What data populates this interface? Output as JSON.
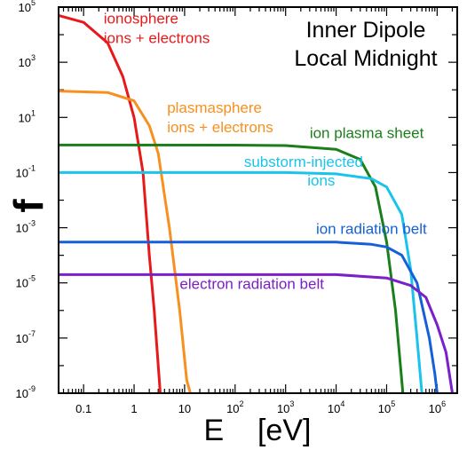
{
  "chart_data": {
    "type": "line",
    "title_lines": [
      "Inner Dipole",
      "Local Midnight"
    ],
    "xlabel": "E    [eV]",
    "ylabel": "f",
    "xscale": "log",
    "yscale": "log",
    "xlim": [
      0.032,
      2500000
    ],
    "ylim": [
      1e-09,
      100000
    ],
    "x_ticks": [
      {
        "value": 0.1,
        "label": "0.1"
      },
      {
        "value": 1,
        "label": "1"
      },
      {
        "value": 10,
        "label": "10"
      },
      {
        "value": 100,
        "base": "10",
        "exp": "2"
      },
      {
        "value": 1000,
        "base": "10",
        "exp": "3"
      },
      {
        "value": 10000,
        "base": "10",
        "exp": "4"
      },
      {
        "value": 100000,
        "base": "10",
        "exp": "5"
      },
      {
        "value": 1000000,
        "base": "10",
        "exp": "6"
      }
    ],
    "y_ticks": [
      {
        "value": 100000,
        "base": "10",
        "exp": "5"
      },
      {
        "value": 1000,
        "base": "10",
        "exp": "3"
      },
      {
        "value": 10,
        "base": "10",
        "exp": "1"
      },
      {
        "value": 0.1,
        "base": "10",
        "exp": "-1"
      },
      {
        "value": 0.001,
        "base": "10",
        "exp": "-3"
      },
      {
        "value": 1e-05,
        "base": "10",
        "exp": "-5"
      },
      {
        "value": 1e-07,
        "base": "10",
        "exp": "-7"
      },
      {
        "value": 1e-09,
        "base": "10",
        "exp": "-9"
      }
    ],
    "grid": false,
    "legend": "inline labels",
    "series": [
      {
        "label_lines": [
          "ionosphere",
          "ions + electrons"
        ],
        "color": "#e8191b",
        "points": [
          [
            0.032,
            50000
          ],
          [
            0.1,
            28000
          ],
          [
            0.3,
            5000
          ],
          [
            0.6,
            300
          ],
          [
            1,
            10
          ],
          [
            1.5,
            0.1
          ],
          [
            2,
            0.0001
          ],
          [
            2.5,
            1e-06
          ],
          [
            3.3,
            1e-09
          ]
        ]
      },
      {
        "label_lines": [
          "plasmasphere",
          "ions + electrons"
        ],
        "color": "#f7901e",
        "points": [
          [
            0.032,
            90
          ],
          [
            0.3,
            80
          ],
          [
            1,
            40
          ],
          [
            2,
            5
          ],
          [
            3,
            0.5
          ],
          [
            5,
            0.001
          ],
          [
            8,
            1e-06
          ],
          [
            11,
            3e-09
          ],
          [
            13,
            1e-09
          ]
        ]
      },
      {
        "label_lines": [
          "ion plasma sheet"
        ],
        "color": "#1a7f1a",
        "points": [
          [
            0.032,
            1
          ],
          [
            100,
            0.99
          ],
          [
            1000,
            0.95
          ],
          [
            10000,
            0.7
          ],
          [
            30000,
            0.3
          ],
          [
            60000,
            0.03
          ],
          [
            100000,
            0.0003
          ],
          [
            150000,
            1e-06
          ],
          [
            210000,
            1e-09
          ]
        ]
      },
      {
        "label_lines": [
          "substorm-injected",
          "ions"
        ],
        "color": "#19c3eb",
        "points": [
          [
            0.032,
            0.1
          ],
          [
            1000,
            0.1
          ],
          [
            10000,
            0.09
          ],
          [
            50000,
            0.06
          ],
          [
            100000,
            0.03
          ],
          [
            200000,
            0.003
          ],
          [
            300000,
            3e-05
          ],
          [
            400000,
            1e-07
          ],
          [
            500000,
            1e-09
          ]
        ]
      },
      {
        "label_lines": [
          "ion radiation belt"
        ],
        "color": "#1560d8",
        "points": [
          [
            0.032,
            0.0003
          ],
          [
            10000,
            0.0003
          ],
          [
            50000,
            0.00025
          ],
          [
            100000,
            0.0002
          ],
          [
            200000,
            0.0001
          ],
          [
            400000,
            1e-05
          ],
          [
            700000,
            1e-07
          ],
          [
            900000,
            5e-09
          ],
          [
            1000000,
            1e-09
          ]
        ]
      },
      {
        "label_lines": [
          "electron radiation belt"
        ],
        "color": "#7a1fc9",
        "points": [
          [
            0.032,
            2e-05
          ],
          [
            10000,
            2e-05
          ],
          [
            100000,
            1.5e-05
          ],
          [
            300000,
            8e-06
          ],
          [
            600000,
            3e-06
          ],
          [
            1000000,
            3e-07
          ],
          [
            1500000,
            3e-08
          ],
          [
            2000000,
            1e-09
          ]
        ]
      }
    ]
  }
}
